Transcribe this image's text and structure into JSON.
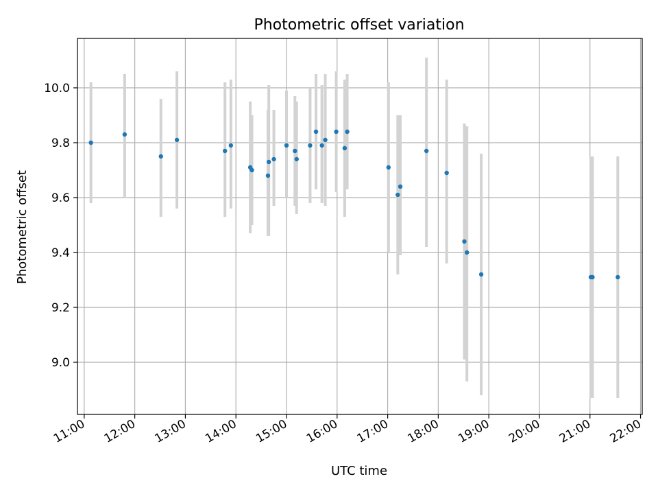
{
  "chart_data": {
    "type": "scatter",
    "title": "Photometric offset variation",
    "xlabel": "UTC time",
    "ylabel": "Photometric offset",
    "grid": true,
    "xlim": [
      "10:52",
      "22:02"
    ],
    "ylim": [
      8.81,
      10.18
    ],
    "x_ticks": [
      "11:00",
      "12:00",
      "13:00",
      "14:00",
      "15:00",
      "16:00",
      "17:00",
      "18:00",
      "19:00",
      "20:00",
      "21:00",
      "22:00"
    ],
    "y_ticks": [
      "9.0",
      "9.2",
      "9.4",
      "9.6",
      "9.8",
      "10.0"
    ],
    "point_color": "#1f77b4",
    "errorbar_color": "#d3d3d3",
    "points": [
      {
        "t": "11:08",
        "y": 9.8,
        "lo": 9.58,
        "hi": 10.02
      },
      {
        "t": "11:48",
        "y": 9.83,
        "lo": 9.6,
        "hi": 10.05
      },
      {
        "t": "12:31",
        "y": 9.75,
        "lo": 9.53,
        "hi": 9.96
      },
      {
        "t": "12:50",
        "y": 9.81,
        "lo": 9.56,
        "hi": 10.06
      },
      {
        "t": "13:47",
        "y": 9.77,
        "lo": 9.53,
        "hi": 10.02
      },
      {
        "t": "13:54",
        "y": 9.79,
        "lo": 9.56,
        "hi": 10.03
      },
      {
        "t": "14:17",
        "y": 9.71,
        "lo": 9.47,
        "hi": 9.95
      },
      {
        "t": "14:19",
        "y": 9.7,
        "lo": 9.5,
        "hi": 9.9
      },
      {
        "t": "14:38",
        "y": 9.68,
        "lo": 9.46,
        "hi": 9.92
      },
      {
        "t": "14:39",
        "y": 9.73,
        "lo": 9.46,
        "hi": 10.01
      },
      {
        "t": "14:45",
        "y": 9.74,
        "lo": 9.57,
        "hi": 9.92
      },
      {
        "t": "15:00",
        "y": 9.79,
        "lo": 9.6,
        "hi": 9.99
      },
      {
        "t": "15:10",
        "y": 9.77,
        "lo": 9.57,
        "hi": 9.97
      },
      {
        "t": "15:12",
        "y": 9.74,
        "lo": 9.54,
        "hi": 9.95
      },
      {
        "t": "15:28",
        "y": 9.79,
        "lo": 9.58,
        "hi": 10.0
      },
      {
        "t": "15:35",
        "y": 9.84,
        "lo": 9.63,
        "hi": 10.05
      },
      {
        "t": "15:42",
        "y": 9.79,
        "lo": 9.58,
        "hi": 10.01
      },
      {
        "t": "15:46",
        "y": 9.81,
        "lo": 9.57,
        "hi": 10.05
      },
      {
        "t": "15:59",
        "y": 9.84,
        "lo": 9.62,
        "hi": 10.06
      },
      {
        "t": "16:09",
        "y": 9.78,
        "lo": 9.53,
        "hi": 10.03
      },
      {
        "t": "16:12",
        "y": 9.84,
        "lo": 9.63,
        "hi": 10.05
      },
      {
        "t": "17:01",
        "y": 9.71,
        "lo": 9.4,
        "hi": 10.02
      },
      {
        "t": "17:12",
        "y": 9.61,
        "lo": 9.32,
        "hi": 9.9
      },
      {
        "t": "17:15",
        "y": 9.64,
        "lo": 9.39,
        "hi": 9.9
      },
      {
        "t": "17:46",
        "y": 9.77,
        "lo": 9.42,
        "hi": 10.11
      },
      {
        "t": "18:10",
        "y": 9.69,
        "lo": 9.36,
        "hi": 10.03
      },
      {
        "t": "18:31",
        "y": 9.44,
        "lo": 9.01,
        "hi": 9.87
      },
      {
        "t": "18:34",
        "y": 9.4,
        "lo": 8.93,
        "hi": 9.86
      },
      {
        "t": "18:51",
        "y": 9.32,
        "lo": 8.88,
        "hi": 9.76
      },
      {
        "t": "21:01",
        "y": 9.31,
        "lo": 8.87,
        "hi": 9.75
      },
      {
        "t": "21:03",
        "y": 9.31,
        "lo": 8.87,
        "hi": 9.75
      },
      {
        "t": "21:33",
        "y": 9.31,
        "lo": 8.87,
        "hi": 9.75
      }
    ]
  }
}
